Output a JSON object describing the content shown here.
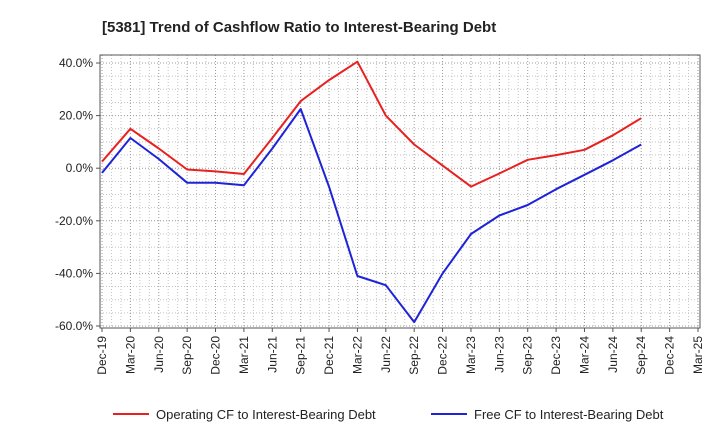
{
  "chart_data": {
    "type": "line",
    "title": "[5381]  Trend of Cashflow Ratio to Interest-Bearing Debt",
    "xlabel": "",
    "ylabel": "",
    "ylim": [
      -60,
      40
    ],
    "grid": true,
    "legend_position": "bottom",
    "categories": [
      "Dec-19",
      "Mar-20",
      "Jun-20",
      "Sep-20",
      "Dec-20",
      "Mar-21",
      "Jun-21",
      "Sep-21",
      "Dec-21",
      "Mar-22",
      "Jun-22",
      "Sep-22",
      "Dec-22",
      "Mar-23",
      "Jun-23",
      "Sep-23",
      "Dec-23",
      "Mar-24",
      "Jun-24",
      "Sep-24",
      "Dec-24",
      "Mar-25"
    ],
    "y_ticks": [
      "40.0%",
      "20.0%",
      "0.0%",
      "-20.0%",
      "-40.0%",
      "-60.0%"
    ],
    "y_tick_values": [
      40,
      20,
      0,
      -20,
      -40,
      -60
    ],
    "series": [
      {
        "name": "Operating CF to Interest-Bearing Debt",
        "color": "#e8201f",
        "values": [
          2.5,
          15.0,
          7.5,
          -0.5,
          -1.2,
          -2.2,
          11.5,
          25.5,
          33.5,
          40.5,
          20.0,
          9.0,
          1.0,
          -7.0,
          -2.0,
          3.2,
          5.0,
          7.0,
          12.5,
          19.0,
          null,
          null
        ]
      },
      {
        "name": "Free CF to Interest-Bearing Debt",
        "color": "#1f23d8",
        "values": [
          -1.8,
          11.5,
          3.5,
          -5.5,
          -5.5,
          -6.5,
          7.5,
          22.5,
          -7.0,
          -41.0,
          -44.5,
          -58.5,
          -40.0,
          -25.0,
          -18.0,
          -14.0,
          -8.0,
          -2.5,
          3.0,
          9.0,
          null,
          null
        ]
      }
    ]
  }
}
